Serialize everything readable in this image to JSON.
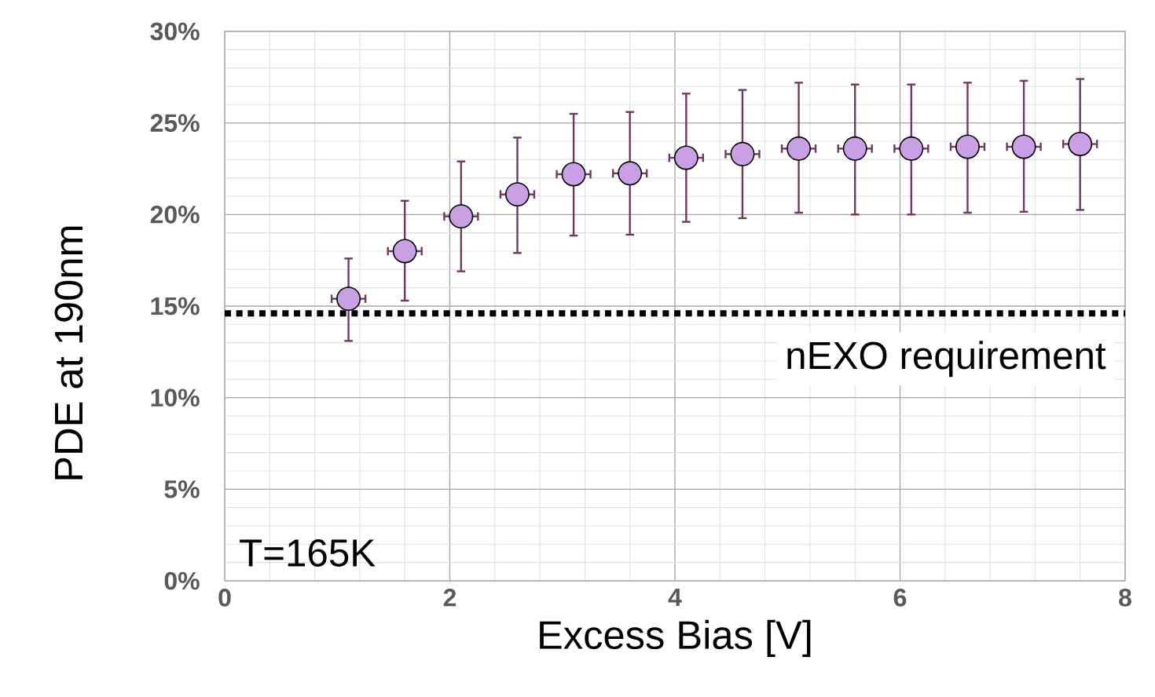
{
  "chart_data": {
    "type": "scatter",
    "xlabel": "Excess Bias [V]",
    "ylabel": "PDE at 190nm",
    "x": [
      1.1,
      1.6,
      2.1,
      2.6,
      3.1,
      3.6,
      4.1,
      4.6,
      5.1,
      5.6,
      6.1,
      6.6,
      7.1,
      7.6
    ],
    "series": [
      {
        "color": "#c9a0e6",
        "values": [
          15.4,
          18.0,
          19.9,
          21.1,
          22.2,
          22.25,
          23.1,
          23.3,
          23.6,
          23.6,
          23.6,
          23.7,
          23.7,
          23.85
        ],
        "errors": [
          [
            13.1,
            17.6
          ],
          [
            15.3,
            20.75
          ],
          [
            16.9,
            22.9
          ],
          [
            17.9,
            24.2
          ],
          [
            18.85,
            25.5
          ],
          [
            18.9,
            25.6
          ],
          [
            19.6,
            26.6
          ],
          [
            19.8,
            26.8
          ],
          [
            20.1,
            27.2
          ],
          [
            20.0,
            27.1
          ],
          [
            20.0,
            27.1
          ],
          [
            20.1,
            27.2
          ],
          [
            20.15,
            27.3
          ],
          [
            20.25,
            27.4
          ]
        ],
        "xerrors": [
          0.15,
          0.15,
          0.15,
          0.15,
          0.15,
          0.15,
          0.15,
          0.15,
          0.15,
          0.15,
          0.15,
          0.15,
          0.15,
          0.15
        ]
      }
    ],
    "xlim": [
      0,
      8
    ],
    "xticks": [
      0,
      2,
      4,
      6,
      8
    ],
    "ylim": [
      0,
      30
    ],
    "yticks": [
      {
        "value": 0,
        "label": "0%"
      },
      {
        "value": 5,
        "label": "5%"
      },
      {
        "value": 10,
        "label": "10%"
      },
      {
        "value": 15,
        "label": "15%"
      },
      {
        "value": 20,
        "label": "20%"
      },
      {
        "value": 25,
        "label": "25%"
      },
      {
        "value": 30,
        "label": "30%"
      }
    ],
    "ref_lines": [
      {
        "axis": "y",
        "value": 14.6,
        "label": "nEXO requirement",
        "color": "#000000",
        "line_style": "dotted"
      }
    ],
    "annotations": [
      "T=165K"
    ],
    "grid": true,
    "marker": "circle"
  }
}
